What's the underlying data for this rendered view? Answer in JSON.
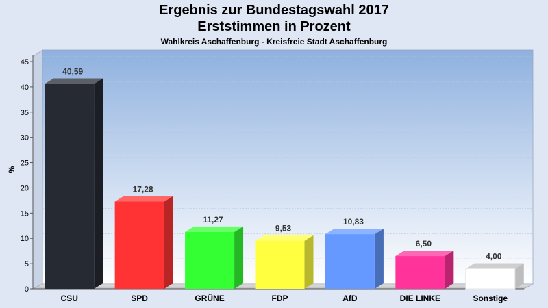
{
  "header": {
    "title": "Ergebnis zur Bundestagswahl 2017",
    "subtitle": "Erststimmen in Prozent",
    "caption": "Wahlkreis Aschaffenburg - Kreisfreie Stadt Aschaffenburg"
  },
  "chart_data": {
    "type": "bar",
    "title": "Ergebnis zur Bundestagswahl 2017",
    "subtitle": "Erststimmen in Prozent",
    "caption": "Wahlkreis Aschaffenburg - Kreisfreie Stadt Aschaffenburg",
    "ylabel": "%",
    "xlabel": "",
    "ylim": [
      0,
      45
    ],
    "yticks": [
      0,
      5,
      10,
      15,
      20,
      25,
      30,
      35,
      40,
      45
    ],
    "grid": true,
    "categories": [
      "CSU",
      "SPD",
      "GRÜNE",
      "FDP",
      "AfD",
      "DIE LINKE",
      "Sonstige"
    ],
    "values": [
      40.59,
      17.28,
      11.27,
      9.53,
      10.83,
      6.5,
      4.0
    ],
    "value_labels": [
      "40,59",
      "17,28",
      "11,27",
      "9,53",
      "10,83",
      "6,50",
      "4,00"
    ],
    "colors": [
      "#262a33",
      "#ff3333",
      "#33ff33",
      "#ffff40",
      "#6699ff",
      "#ff3399",
      "#ffffff"
    ]
  }
}
